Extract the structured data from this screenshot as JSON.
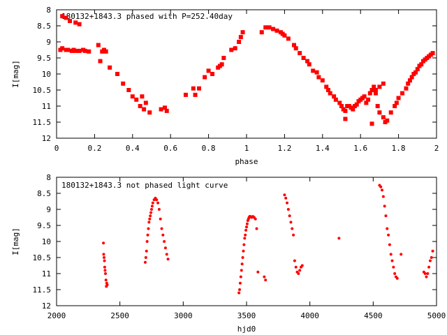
{
  "chart_data": [
    {
      "type": "scatter",
      "title": "180132+1843.3 phased with P=252.40day",
      "xlabel": "phase",
      "ylabel": "I[mag]",
      "xlim": [
        0,
        2
      ],
      "ylim": [
        12,
        8
      ],
      "y_inverted": true,
      "grid": false,
      "legend": "none",
      "marker_color": "#ff0000",
      "xticks": [
        "0",
        "0.2",
        "0.4",
        "0.6",
        "0.8",
        "1",
        "1.2",
        "1.4",
        "1.6",
        "1.8",
        "2"
      ],
      "yticks": [
        "8",
        "8.5",
        "9",
        "9.5",
        "10",
        "10.5",
        "11",
        "11.5",
        "12"
      ],
      "series": [
        {
          "x": [
            0.02,
            0.03,
            0.05,
            0.06,
            0.08,
            0.09,
            0.1,
            0.12,
            0.14,
            0.15,
            0.17,
            0.03,
            0.05,
            0.07,
            0.1,
            0.12,
            0.22,
            0.24,
            0.25,
            0.26,
            0.23,
            0.28,
            0.32,
            0.35,
            0.38,
            0.4,
            0.42,
            0.44,
            0.45,
            0.46,
            0.47,
            0.49,
            0.55,
            0.57,
            0.58,
            0.68,
            0.72,
            0.73,
            0.75,
            0.78,
            0.8,
            0.82,
            0.85,
            0.86,
            0.87,
            0.88,
            0.92,
            0.94,
            0.96,
            0.97,
            0.98,
            1.08,
            1.1,
            1.12,
            1.14,
            1.16,
            1.18,
            1.19,
            1.2,
            1.22,
            1.25,
            1.26,
            1.28,
            1.3,
            1.32,
            1.33,
            1.35,
            1.37,
            1.38,
            1.4,
            1.42,
            1.43,
            1.44,
            1.46,
            1.47,
            1.49,
            1.5,
            1.51,
            1.52,
            1.53,
            1.55,
            1.56,
            1.57,
            1.58,
            1.59,
            1.6,
            1.61,
            1.62,
            1.63,
            1.64,
            1.65,
            1.66,
            1.67,
            1.68,
            1.69,
            1.7,
            1.72,
            1.73,
            1.74,
            1.76,
            1.78,
            1.79,
            1.8,
            1.82,
            1.84,
            1.85,
            1.86,
            1.87,
            1.88,
            1.89,
            1.9,
            1.91,
            1.92,
            1.93,
            1.94,
            1.95,
            1.96,
            1.97,
            1.98,
            1.52,
            1.54,
            1.66,
            1.68,
            1.7,
            1.72
          ],
          "y": [
            9.25,
            9.2,
            9.25,
            9.25,
            9.28,
            9.25,
            9.28,
            9.28,
            9.25,
            9.28,
            9.3,
            8.2,
            8.25,
            8.35,
            8.4,
            8.45,
            9.1,
            9.3,
            9.25,
            9.3,
            9.6,
            9.8,
            10.0,
            10.3,
            10.5,
            10.7,
            10.8,
            11.0,
            10.7,
            11.1,
            10.9,
            11.2,
            11.1,
            11.05,
            11.15,
            10.65,
            10.45,
            10.65,
            10.45,
            10.1,
            9.9,
            10.0,
            9.8,
            9.75,
            9.7,
            9.5,
            9.25,
            9.2,
            9.0,
            8.85,
            8.7,
            8.7,
            8.55,
            8.55,
            8.6,
            8.65,
            8.7,
            8.75,
            8.8,
            8.9,
            9.1,
            9.2,
            9.35,
            9.5,
            9.6,
            9.7,
            9.9,
            9.95,
            10.1,
            10.2,
            10.4,
            10.5,
            10.6,
            10.7,
            10.8,
            10.9,
            11.0,
            11.1,
            11.15,
            11.0,
            11.05,
            11.1,
            11.0,
            10.95,
            10.85,
            10.8,
            10.75,
            10.7,
            10.9,
            10.8,
            10.6,
            10.5,
            10.4,
            10.6,
            11.0,
            11.2,
            11.35,
            11.5,
            11.45,
            11.2,
            11.0,
            10.9,
            10.75,
            10.6,
            10.45,
            10.3,
            10.2,
            10.1,
            10.0,
            9.95,
            9.85,
            9.75,
            9.7,
            9.6,
            9.55,
            9.5,
            9.45,
            9.4,
            9.35,
            11.4,
            11.0,
            11.55,
            10.5,
            10.4,
            10.3
          ]
        }
      ]
    },
    {
      "type": "scatter",
      "title": "180132+1843.3 not phased light curve",
      "xlabel": "hjd0",
      "ylabel": "I[mag]",
      "xlim": [
        2000,
        5000
      ],
      "ylim": [
        12,
        8
      ],
      "y_inverted": true,
      "grid": false,
      "legend": "none",
      "marker_color": "#ff0000",
      "xticks": [
        "2000",
        "2500",
        "3000",
        "3500",
        "4000",
        "4500",
        "5000"
      ],
      "yticks": [
        "8",
        "8.5",
        "9",
        "9.5",
        "10",
        "10.5",
        "11",
        "11.5",
        "12"
      ],
      "series": [
        {
          "x": [
            2370,
            2372,
            2375,
            2378,
            2380,
            2383,
            2386,
            2390,
            2393,
            2396,
            2400,
            2700,
            2705,
            2710,
            2715,
            2720,
            2725,
            2730,
            2735,
            2740,
            2745,
            2750,
            2755,
            2760,
            2770,
            2780,
            2790,
            2800,
            2810,
            2820,
            2830,
            2840,
            2850,
            2860,
            2870,
            2880,
            3440,
            3445,
            3450,
            3455,
            3460,
            3465,
            3470,
            3475,
            3480,
            3485,
            3490,
            3495,
            3500,
            3505,
            3510,
            3515,
            3520,
            3525,
            3530,
            3540,
            3550,
            3560,
            3570,
            3580,
            3590,
            3640,
            3650,
            3800,
            3810,
            3820,
            3830,
            3840,
            3850,
            3860,
            3870,
            3880,
            3890,
            3900,
            3910,
            3920,
            3930,
            3940,
            4230,
            4550,
            4560,
            4570,
            4580,
            4590,
            4600,
            4610,
            4620,
            4630,
            4640,
            4650,
            4660,
            4670,
            4680,
            4690,
            4720,
            4900,
            4910,
            4920,
            4930,
            4940,
            4950,
            4960,
            4970
          ],
          "y": [
            10.05,
            10.4,
            10.5,
            10.6,
            10.8,
            10.9,
            11.0,
            11.2,
            11.4,
            11.3,
            11.35,
            10.65,
            10.5,
            10.3,
            10.0,
            9.8,
            9.6,
            9.4,
            9.3,
            9.2,
            9.1,
            9.0,
            8.9,
            8.8,
            8.7,
            8.65,
            8.7,
            8.8,
            9.0,
            9.3,
            9.6,
            9.8,
            10.0,
            10.2,
            10.4,
            10.55,
            11.6,
            11.5,
            11.3,
            11.1,
            10.9,
            10.7,
            10.5,
            10.3,
            10.1,
            9.9,
            9.8,
            9.65,
            9.55,
            9.45,
            9.35,
            9.3,
            9.25,
            9.22,
            9.22,
            9.25,
            9.22,
            9.25,
            9.3,
            9.6,
            10.95,
            11.1,
            11.2,
            8.55,
            8.65,
            8.8,
            9.0,
            9.2,
            9.4,
            9.6,
            9.8,
            10.6,
            10.8,
            10.95,
            11.0,
            10.9,
            10.8,
            10.75,
            9.9,
            8.25,
            8.3,
            8.4,
            8.6,
            8.9,
            9.2,
            9.6,
            9.8,
            10.1,
            10.4,
            10.6,
            10.8,
            11.0,
            11.1,
            11.15,
            10.4,
            10.95,
            11.0,
            11.1,
            11.0,
            10.8,
            10.6,
            10.5,
            10.3
          ]
        }
      ]
    }
  ]
}
